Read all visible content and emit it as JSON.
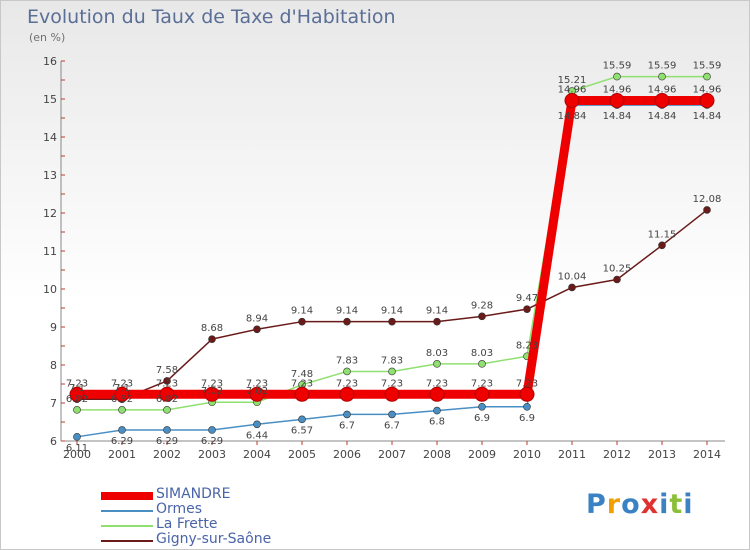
{
  "title": "Evolution du Taux de Taxe d'Habitation",
  "unit_label": "(en %)",
  "brand": {
    "letters": [
      "P",
      "r",
      "o",
      "x",
      "i",
      "t",
      "i"
    ],
    "colors": [
      "#3b82c4",
      "#f0a000",
      "#3b82c4",
      "#e03030",
      "#3b82c4",
      "#8bbf3a",
      "#3b82c4"
    ]
  },
  "chart_data": {
    "type": "line",
    "title": "Evolution du Taux de Taxe d'Habitation",
    "ylabel": "(en %)",
    "xlabel": "",
    "x": [
      "2000",
      "2001",
      "2002",
      "2003",
      "2004",
      "2005",
      "2006",
      "2007",
      "2008",
      "2009",
      "2010",
      "2011",
      "2012",
      "2013",
      "2014"
    ],
    "ylim": [
      6,
      16
    ],
    "yticks": [
      "6",
      "7",
      "8",
      "9",
      "10",
      "11",
      "12",
      "13",
      "14",
      "15",
      "16"
    ],
    "grid": false,
    "legend_position": "bottom-left",
    "series": [
      {
        "name": "SIMANDRE",
        "color": "#ee0000",
        "width": 9,
        "values": [
          7.23,
          7.23,
          7.23,
          7.23,
          7.23,
          7.23,
          7.23,
          7.23,
          7.23,
          7.23,
          7.23,
          14.96,
          14.96,
          14.96,
          14.96
        ],
        "labels": [
          "7.23",
          "7.23",
          "7.23",
          "7.23",
          "7.23",
          "7.23",
          "7.23",
          "7.23",
          "7.23",
          "7.23",
          "7.23",
          "14.96",
          "14.96",
          "14.96",
          "14.96"
        ]
      },
      {
        "name": "Ormes",
        "color": "#4a8fc4",
        "width": 1.5,
        "values": [
          6.11,
          6.29,
          6.29,
          6.29,
          6.44,
          6.57,
          6.7,
          6.7,
          6.8,
          6.9,
          6.9,
          14.84,
          14.84,
          14.84,
          14.84
        ],
        "labels": [
          "6.11",
          "6.29",
          "6.29",
          "6.29",
          "6.44",
          "6.57",
          "6.7",
          "6.7",
          "6.8",
          "6.9",
          "6.9",
          "14.84",
          "14.84",
          "14.84",
          "14.84"
        ]
      },
      {
        "name": "La Frette",
        "color": "#8fe070",
        "width": 1.5,
        "values": [
          6.82,
          6.82,
          6.82,
          7.02,
          7.02,
          7.48,
          7.83,
          7.83,
          8.03,
          8.03,
          8.23,
          15.21,
          15.59,
          15.59,
          15.59
        ],
        "labels": [
          "6.82",
          "6.82",
          "6.82",
          "7.02",
          "7.02",
          "7.48",
          "7.83",
          "7.83",
          "8.03",
          "8.03",
          "8.23",
          "15.21",
          "15.59",
          "15.59",
          "15.59"
        ]
      },
      {
        "name": "Gigny-sur-Saône",
        "color": "#6b1a1a",
        "width": 1.5,
        "values": [
          7.1,
          7.1,
          7.58,
          8.68,
          8.94,
          9.14,
          9.14,
          9.14,
          9.14,
          9.28,
          9.47,
          10.04,
          10.25,
          11.15,
          12.08
        ],
        "labels": [
          "7.1",
          "7.1",
          "7.58",
          "8.68",
          "8.94",
          "9.14",
          "9.14",
          "9.14",
          "9.14",
          "9.28",
          "9.47",
          "10.04",
          "10.25",
          "11.15",
          "12.08"
        ]
      }
    ]
  }
}
